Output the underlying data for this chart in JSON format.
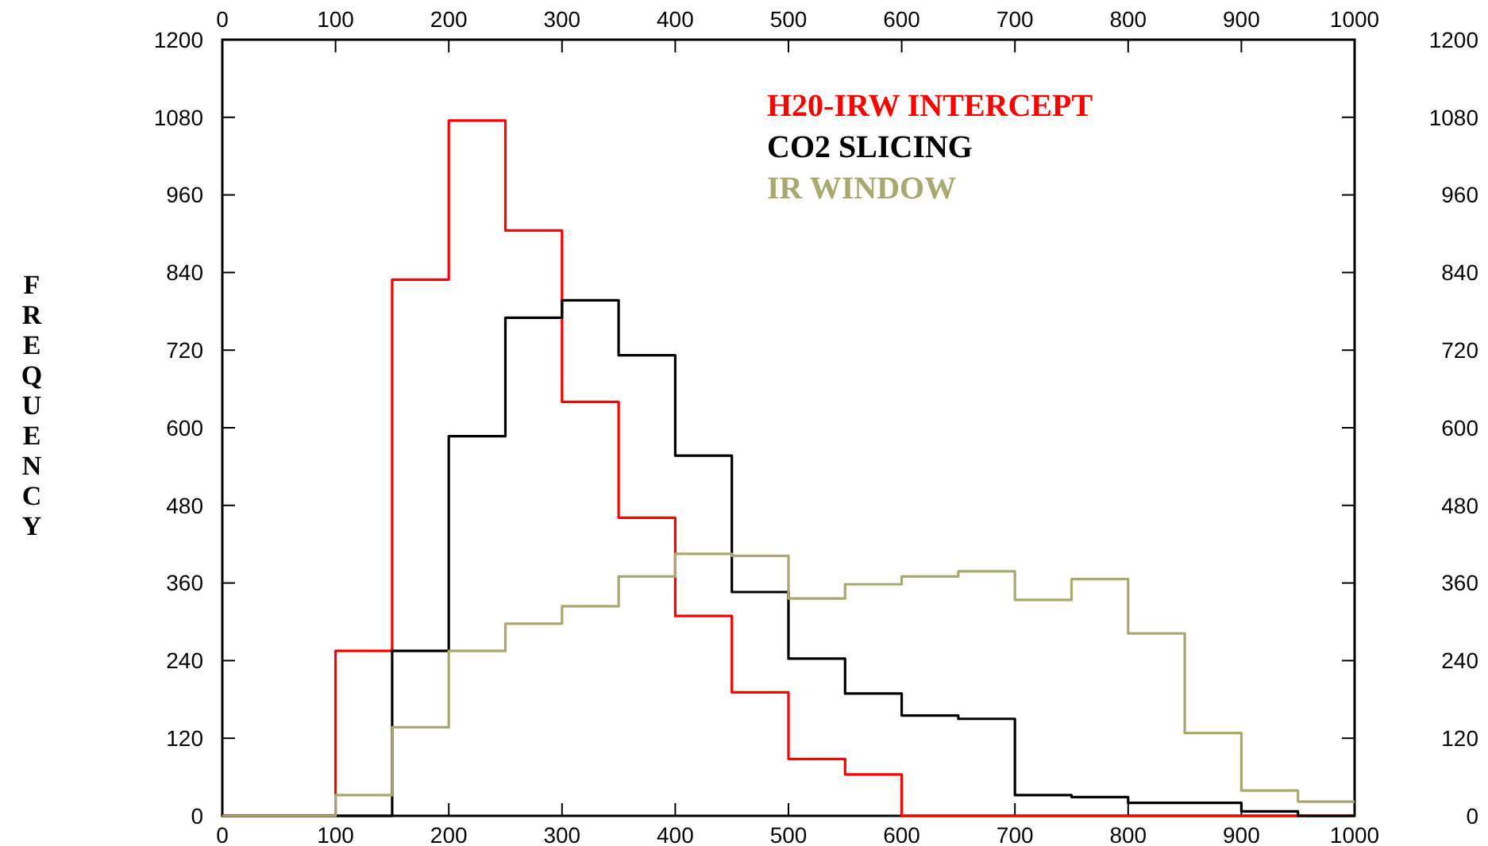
{
  "chart_data": {
    "type": "histogram",
    "ylabel": "FREQUENCY",
    "legend": "top right",
    "bins": [
      0,
      50,
      100,
      150,
      200,
      250,
      300,
      350,
      400,
      450,
      500,
      550,
      600,
      650,
      700,
      750,
      800,
      850,
      900,
      950,
      1000
    ],
    "series": [
      {
        "name": "H20-IRW INTERCEPT",
        "color": "#ff0000",
        "values": [
          0,
          0,
          255,
          829,
          1075,
          905,
          640,
          461,
          309,
          191,
          88,
          64,
          0,
          0,
          0,
          0,
          0,
          0,
          0,
          0
        ]
      },
      {
        "name": "CO2 SLICING",
        "color": "#000000",
        "values": [
          0,
          0,
          0,
          255,
          587,
          770,
          797,
          712,
          557,
          346,
          243,
          189,
          155,
          150,
          32,
          29,
          20,
          20,
          7,
          0
        ]
      },
      {
        "name": "IR WINDOW",
        "color": "#a8a870",
        "values": [
          0,
          0,
          32,
          137,
          255,
          297,
          324,
          370,
          405,
          402,
          336,
          358,
          370,
          378,
          334,
          366,
          282,
          128,
          39,
          22
        ]
      }
    ],
    "xlim": [
      0,
      1000
    ],
    "xticks": [
      0,
      100,
      200,
      300,
      400,
      500,
      600,
      700,
      800,
      900,
      1000
    ],
    "x2lim": [
      0,
      1000
    ],
    "x2ticks": [
      0,
      100,
      200,
      300,
      400,
      500,
      600,
      700,
      800,
      900,
      1000
    ],
    "ylim": [
      0,
      1200
    ],
    "yticks": [
      0,
      120,
      240,
      360,
      480,
      600,
      720,
      840,
      960,
      1080,
      1200
    ],
    "y2lim": [
      0,
      1200
    ],
    "y2ticks": [
      0,
      120,
      240,
      360,
      480,
      600,
      720,
      840,
      960,
      1080,
      1200
    ]
  }
}
